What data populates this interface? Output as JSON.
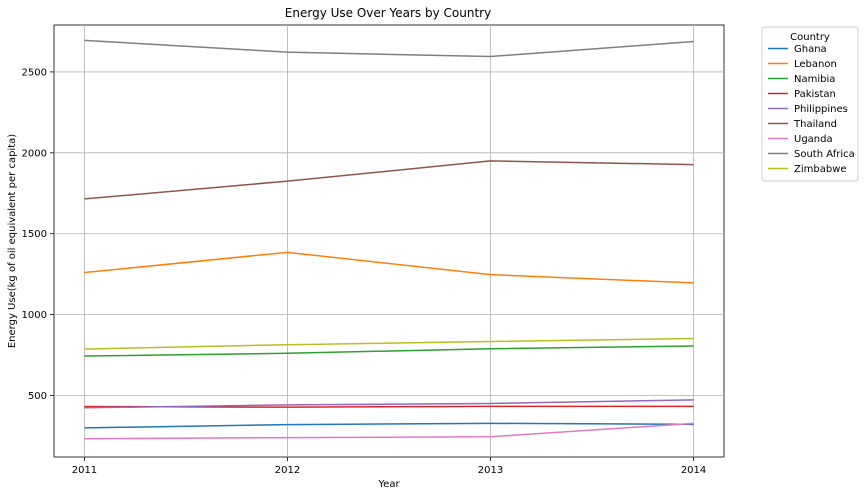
{
  "chart_data": {
    "type": "line",
    "title": "Energy Use Over Years by Country",
    "xlabel": "Year",
    "ylabel": "Energy Use(kg of oil equivalent per capita)",
    "x": [
      2011,
      2012,
      2013,
      2014
    ],
    "x_tick_labels": [
      "2011",
      "2012",
      "2013",
      "2014"
    ],
    "y_ticks": [
      500,
      1000,
      1500,
      2000,
      2500
    ],
    "y_tick_labels": [
      "500",
      "1000",
      "1500",
      "2000",
      "2500"
    ],
    "ylim": [
      120,
      2790
    ],
    "xlim": [
      2010.85,
      2014.15
    ],
    "grid": true,
    "legend": {
      "title": "Country",
      "position": "outside-top-right"
    },
    "series": [
      {
        "name": "Ghana",
        "color": "#1f77b4",
        "values": [
          300,
          320,
          328,
          322
        ]
      },
      {
        "name": "Lebanon",
        "color": "#ff7f0e",
        "values": [
          1260,
          1385,
          1247,
          1196
        ]
      },
      {
        "name": "Namibia",
        "color": "#2ca02c",
        "values": [
          744,
          761,
          789,
          806
        ]
      },
      {
        "name": "Pakistan",
        "color": "#d62728",
        "values": [
          432,
          428,
          433,
          433
        ]
      },
      {
        "name": "Philippines",
        "color": "#9467bd",
        "values": [
          424,
          442,
          451,
          473
        ]
      },
      {
        "name": "Thailand",
        "color": "#8c564b",
        "values": [
          1715,
          1825,
          1950,
          1927
        ]
      },
      {
        "name": "Uganda",
        "color": "#e377c2",
        "values": [
          233,
          240,
          245,
          328
        ]
      },
      {
        "name": "South Africa",
        "color": "#7f7f7f",
        "values": [
          2695,
          2622,
          2595,
          2688
        ]
      },
      {
        "name": "Zimbabwe",
        "color": "#bcbd22",
        "values": [
          787,
          814,
          834,
          852
        ]
      }
    ]
  }
}
